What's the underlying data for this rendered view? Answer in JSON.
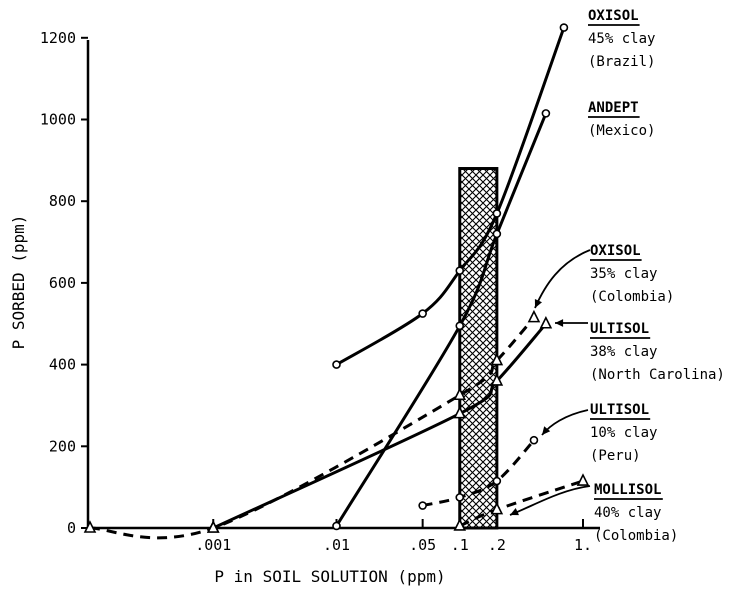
{
  "chart_data": {
    "type": "line",
    "title": "",
    "xlabel": "P in SOIL SOLUTION (ppm)",
    "ylabel": "P SORBED (ppm)",
    "x_scale": "log",
    "x_ticks": [
      {
        "value": 0.001,
        "label": ".001"
      },
      {
        "value": 0.01,
        "label": ".01"
      },
      {
        "value": 0.05,
        "label": ".05"
      },
      {
        "value": 0.1,
        "label": ".1"
      },
      {
        "value": 0.2,
        "label": ".2"
      },
      {
        "value": 1,
        "label": "1."
      }
    ],
    "y_ticks": [
      0,
      200,
      400,
      600,
      800,
      1000,
      1200
    ],
    "ylim": [
      0,
      1250
    ],
    "shaded_band": {
      "x_range": [
        0.1,
        0.2
      ],
      "y_range": [
        0,
        880
      ]
    },
    "series": [
      {
        "id": "oxisol45",
        "name": "OXISOL 45% clay (Brazil)",
        "label_lines": [
          "OXISOL",
          "45% clay",
          "(Brazil)"
        ],
        "marker": "circle",
        "style": "solid",
        "points": [
          [
            0.01,
            400
          ],
          [
            0.05,
            525
          ],
          [
            0.1,
            630
          ],
          [
            0.2,
            770
          ],
          [
            0.7,
            1225
          ]
        ]
      },
      {
        "id": "andept",
        "name": "ANDEPT (Mexico)",
        "label_lines": [
          "ANDEPT",
          "(Mexico)"
        ],
        "marker": "circle",
        "style": "solid",
        "points": [
          [
            0.01,
            5
          ],
          [
            0.1,
            495
          ],
          [
            0.2,
            720
          ],
          [
            0.5,
            1015
          ]
        ]
      },
      {
        "id": "oxisol35",
        "name": "OXISOL 35% clay (Colombia)",
        "label_lines": [
          "OXISOL",
          "35% clay",
          "(Colombia)"
        ],
        "marker": "triangle",
        "style": "dashed",
        "points": [
          [
            0.0001,
            0
          ],
          [
            0.001,
            0
          ],
          [
            0.1,
            325
          ],
          [
            0.2,
            410
          ],
          [
            0.4,
            515
          ]
        ]
      },
      {
        "id": "ultisol38",
        "name": "ULTISOL 38% clay (North Carolina)",
        "label_lines": [
          "ULTISOL",
          "38% clay",
          "(North Carolina)"
        ],
        "marker": "triangle",
        "style": "solid",
        "points": [
          [
            0.001,
            0
          ],
          [
            0.1,
            280
          ],
          [
            0.2,
            360
          ],
          [
            0.5,
            500
          ]
        ]
      },
      {
        "id": "ultisol10",
        "name": "ULTISOL 10% clay (Peru)",
        "label_lines": [
          "ULTISOL",
          "10% clay",
          "(Peru)"
        ],
        "marker": "circle",
        "style": "dashed",
        "points": [
          [
            0.05,
            55
          ],
          [
            0.1,
            75
          ],
          [
            0.2,
            115
          ],
          [
            0.4,
            215
          ]
        ]
      },
      {
        "id": "mollisol",
        "name": "MOLLISOL 40% clay (Colombia)",
        "label_lines": [
          "MOLLISOL",
          "40% clay",
          "(Colombia)"
        ],
        "marker": "triangle",
        "style": "dashed",
        "points": [
          [
            0.1,
            5
          ],
          [
            0.2,
            45
          ],
          [
            1,
            115
          ]
        ]
      }
    ]
  }
}
